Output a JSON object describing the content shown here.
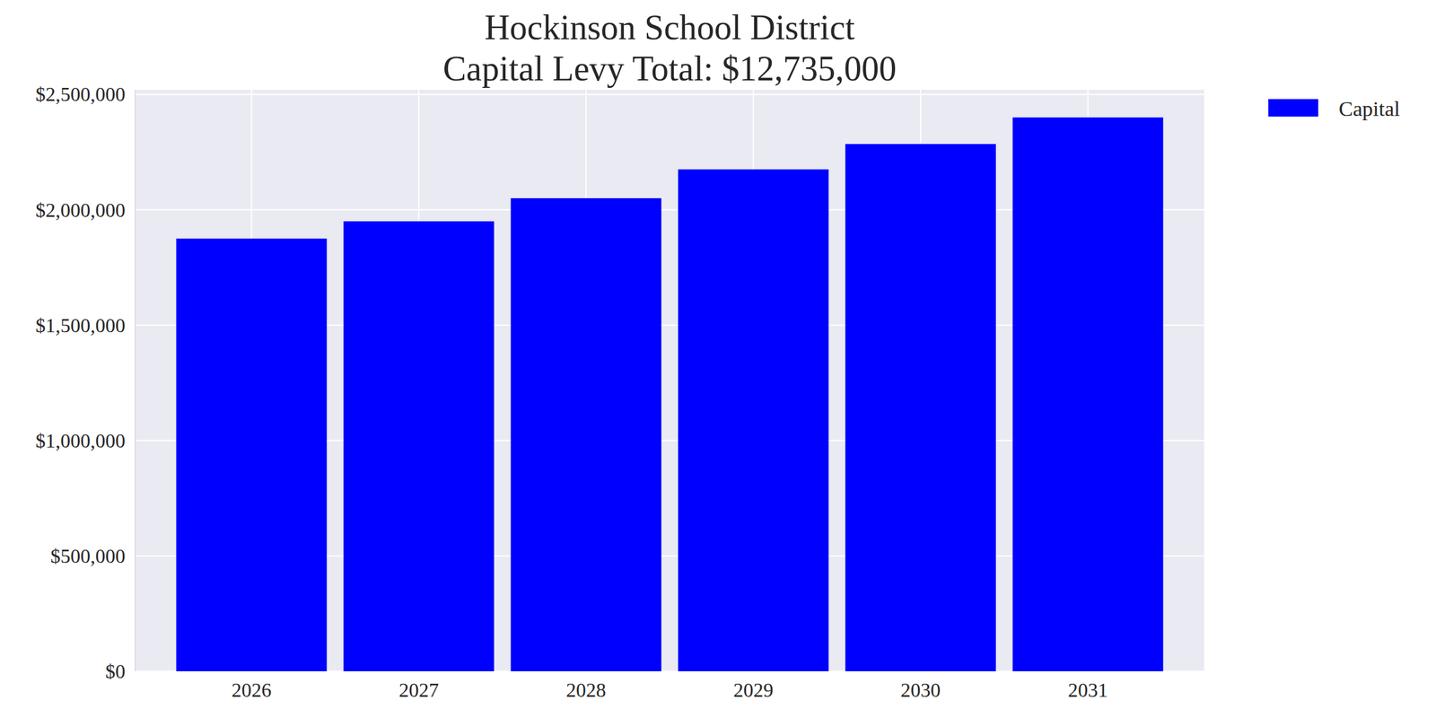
{
  "chart_data": {
    "type": "bar",
    "title": "Hockinson School District\nCapital Levy Total: $12,735,000",
    "categories": [
      "2026",
      "2027",
      "2028",
      "2029",
      "2030",
      "2031"
    ],
    "series": [
      {
        "name": "Capital",
        "color": "#0000ff",
        "values": [
          1875000,
          1950000,
          2050000,
          2175000,
          2285000,
          2400000
        ]
      }
    ],
    "ylim": [
      0,
      2520000
    ],
    "yticks": [
      {
        "value": 0,
        "label": "$0"
      },
      {
        "value": 500000,
        "label": "$500,000"
      },
      {
        "value": 1000000,
        "label": "$1,000,000"
      },
      {
        "value": 1500000,
        "label": "$1,500,000"
      },
      {
        "value": 2000000,
        "label": "$2,000,000"
      },
      {
        "value": 2500000,
        "label": "$2,500,000"
      }
    ],
    "grid": true,
    "legend": "right"
  }
}
